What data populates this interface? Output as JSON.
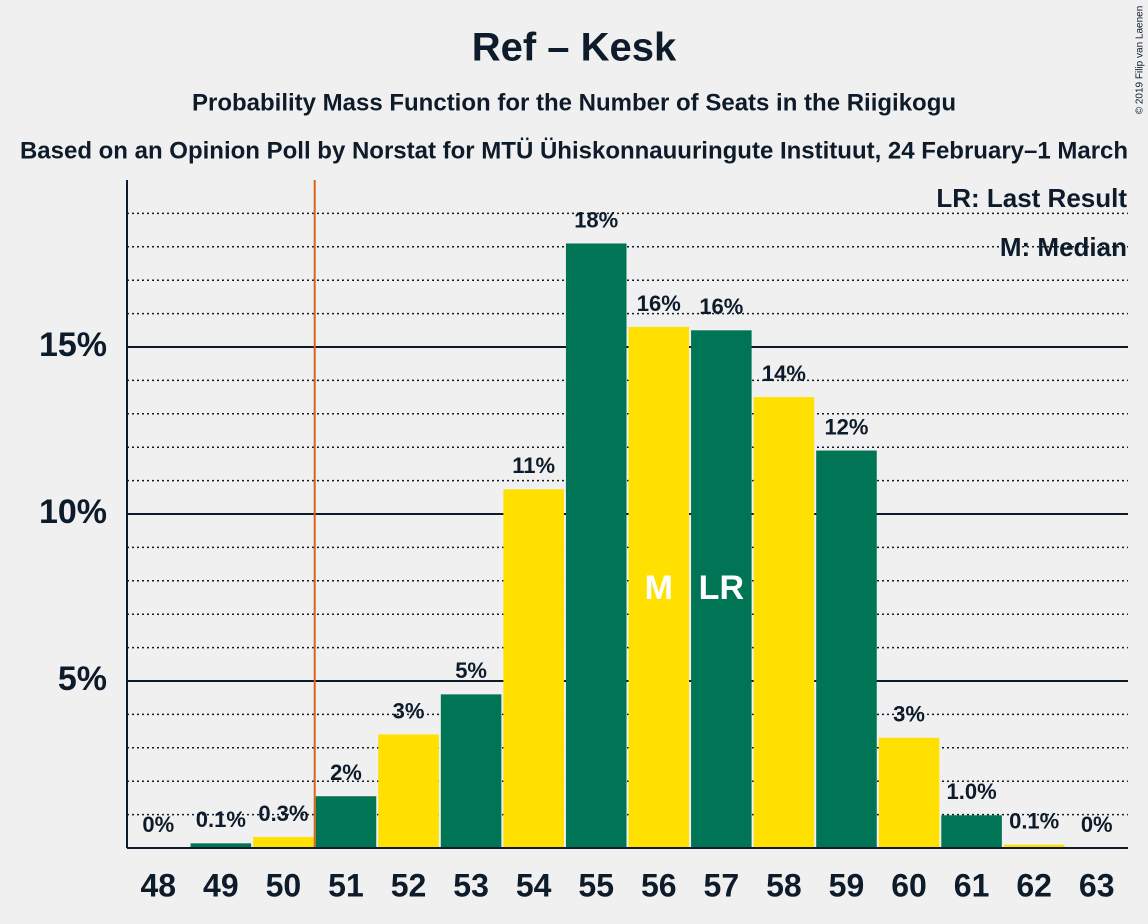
{
  "chart_data": {
    "type": "bar",
    "title": "Ref – Kesk",
    "subtitle": "Probability Mass Function for the Number of Seats in the Riigikogu",
    "subtitle2": "Based on an Opinion Poll by Norstat for MTÜ Ühiskonnauuringute Instituut, 24 February–1 March",
    "copyright": "© 2019 Filip van Laenen",
    "categories": [
      "48",
      "49",
      "50",
      "51",
      "52",
      "53",
      "54",
      "55",
      "56",
      "57",
      "58",
      "59",
      "60",
      "61",
      "62",
      "63"
    ],
    "values": [
      0,
      0.14,
      0.33,
      1.55,
      3.4,
      4.6,
      10.74,
      18.1,
      15.6,
      15.5,
      13.5,
      11.9,
      3.3,
      0.98,
      0.1,
      0
    ],
    "value_labels": [
      "0%",
      "0.1%",
      "0.3%",
      "2%",
      "3%",
      "5%",
      "11%",
      "18%",
      "16%",
      "16%",
      "14%",
      "12%",
      "3%",
      "1.0%",
      "0.1%",
      "0%"
    ],
    "colors": [
      "#007556",
      "#007556",
      "#ffe000",
      "#007556",
      "#ffe000",
      "#007556",
      "#ffe000",
      "#007556",
      "#ffe000",
      "#007556",
      "#ffe000",
      "#007556",
      "#ffe000",
      "#007556",
      "#ffe000",
      "#007556"
    ],
    "ylim": [
      0,
      20
    ],
    "yticks": [
      {
        "value": 5,
        "label": "5%"
      },
      {
        "value": 10,
        "label": "10%"
      },
      {
        "value": 15,
        "label": "15%"
      }
    ],
    "minor_yticks": [
      1,
      2,
      3,
      4,
      6,
      7,
      8,
      9,
      11,
      12,
      13,
      14,
      16,
      17,
      18,
      19
    ],
    "grid": true,
    "marker_line": {
      "after_category": "50",
      "color": "#d9641b"
    },
    "bar_labels": [
      {
        "category": "56",
        "text": "M"
      },
      {
        "category": "57",
        "text": "LR"
      }
    ],
    "legend": [
      "LR: Last Result",
      "M: Median"
    ]
  }
}
